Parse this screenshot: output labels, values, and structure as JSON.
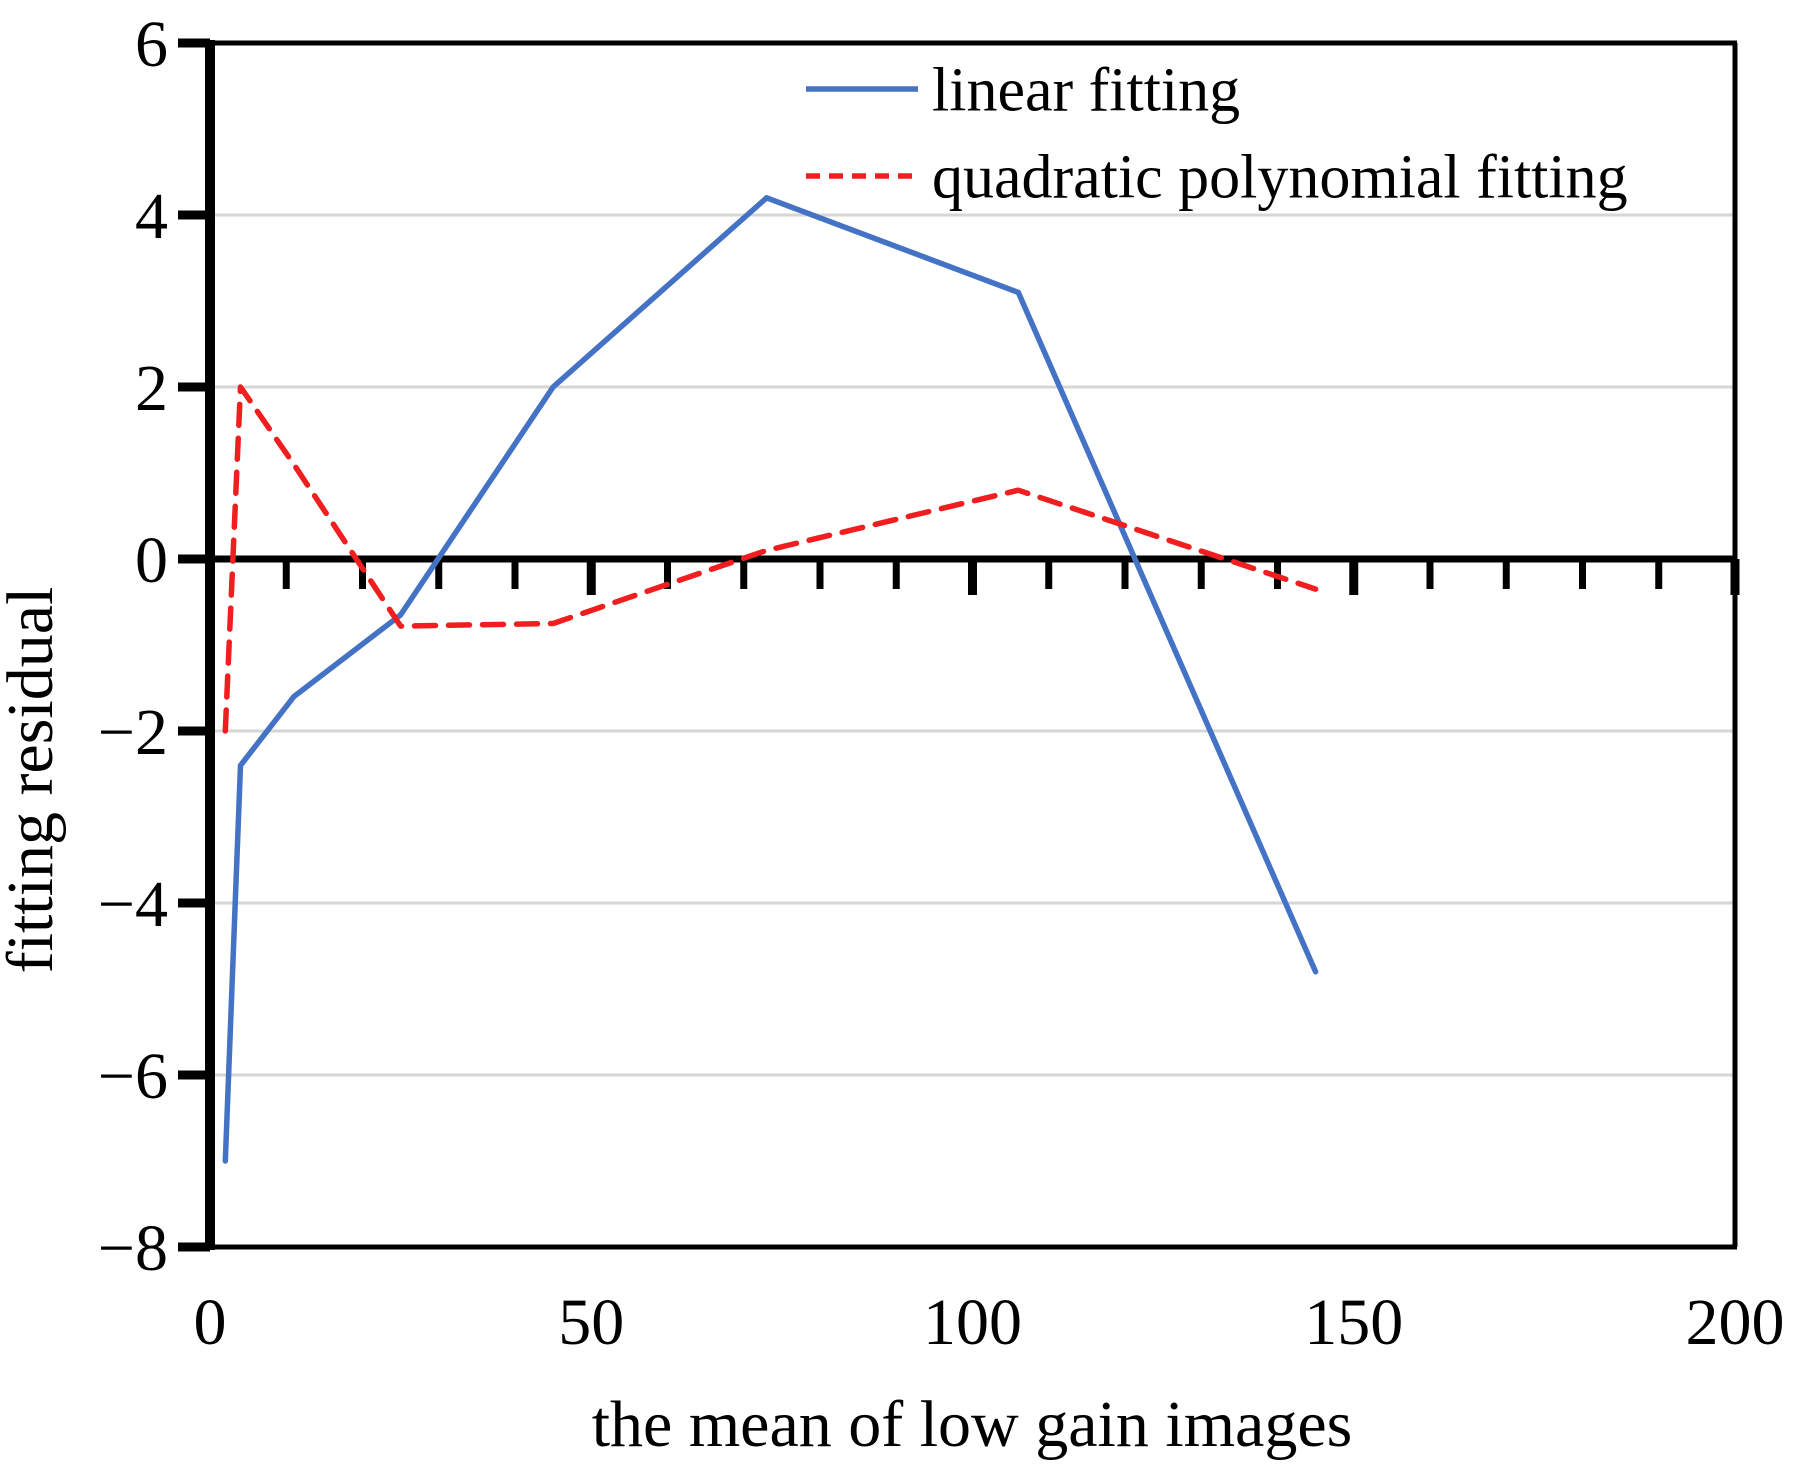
{
  "chart_data": {
    "type": "line",
    "title": "",
    "xlabel": "the mean of low gain images",
    "ylabel": "fitting residual",
    "xlim": [
      0,
      200
    ],
    "ylim": [
      -8,
      6
    ],
    "x_ticks": [
      0,
      50,
      100,
      150,
      200
    ],
    "x_minor_step": 10,
    "y_ticks": [
      6,
      4,
      2,
      0,
      -2,
      -4,
      -6,
      -8
    ],
    "gridlines_y": [
      4,
      2,
      -2,
      -4,
      -6
    ],
    "grid": "horizontal",
    "legend_position": "top-right-inside",
    "x": [
      2,
      4,
      11,
      25,
      45,
      73,
      106,
      145
    ],
    "series": [
      {
        "name": "linear fitting",
        "style": "solid",
        "color": "#4472C4",
        "values": [
          -7.0,
          -2.4,
          -1.6,
          -0.65,
          2.0,
          4.2,
          3.1,
          -4.8
        ]
      },
      {
        "name": "quadratic polynomial fitting",
        "style": "dashed",
        "color": "#F01E1E",
        "values": [
          -2.0,
          2.0,
          1.1,
          -0.78,
          -0.75,
          0.1,
          0.8,
          -0.35
        ]
      }
    ]
  },
  "colors": {
    "background": "#FFFFFF",
    "axis": "#000000",
    "gridline": "#D6D6D6",
    "series_linear": "#4472C4",
    "series_quadratic": "#F01E1E"
  }
}
